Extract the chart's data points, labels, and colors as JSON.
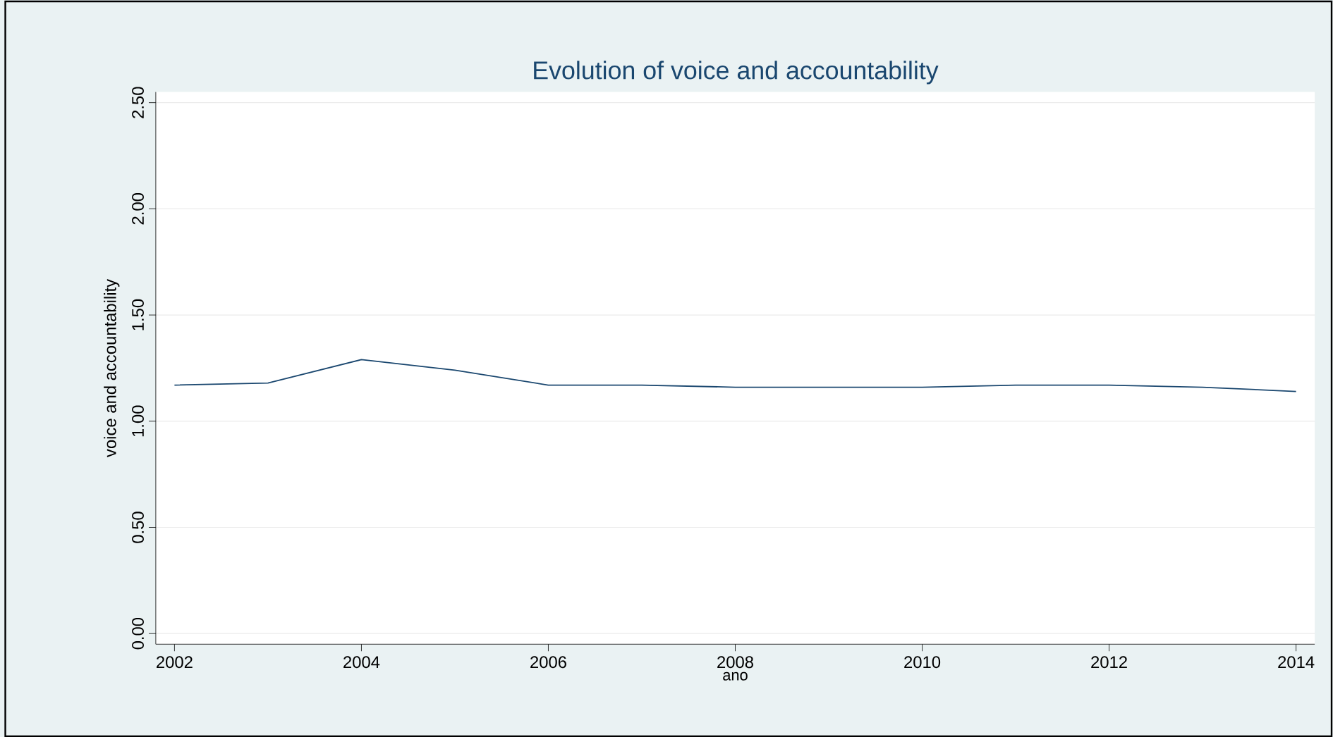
{
  "chart_data": {
    "type": "line",
    "title": "Evolution of voice and accountability",
    "xlabel": "ano",
    "ylabel": "voice and accountability",
    "x": [
      2002,
      2003,
      2004,
      2005,
      2006,
      2007,
      2008,
      2009,
      2010,
      2011,
      2012,
      2013,
      2014
    ],
    "series": [
      {
        "color": "#1a476f",
        "values": [
          1.17,
          1.18,
          1.29,
          1.24,
          1.17,
          1.17,
          1.16,
          1.16,
          1.16,
          1.17,
          1.17,
          1.16,
          1.14
        ]
      }
    ],
    "xlim": [
      2001.8,
      2014.2
    ],
    "ylim": [
      -0.05,
      2.55
    ],
    "xticks": [
      2002,
      2004,
      2006,
      2008,
      2010,
      2012,
      2014
    ],
    "yticks": [
      {
        "value": 0,
        "label": "0.00"
      },
      {
        "value": 0.5,
        "label": "0.50"
      },
      {
        "value": 1,
        "label": "1.00"
      },
      {
        "value": 1.5,
        "label": "1.50"
      },
      {
        "value": 2,
        "label": "2.00"
      },
      {
        "value": 2.5,
        "label": "2.50"
      }
    ],
    "grid": "y",
    "marker": "none",
    "line_style": "solid"
  }
}
